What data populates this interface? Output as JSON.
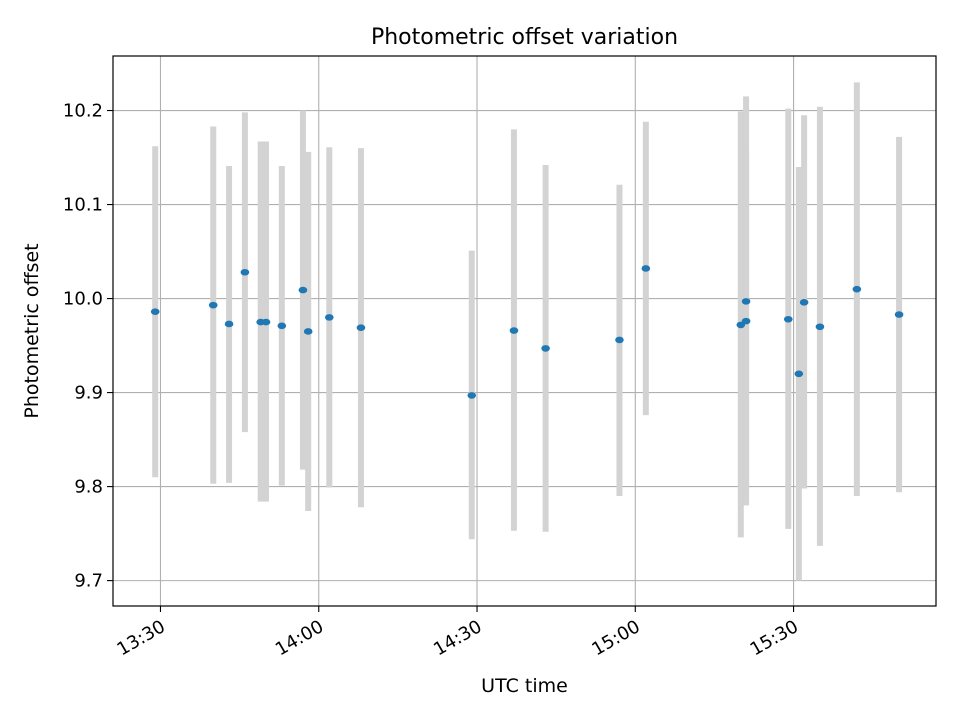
{
  "chart_data": {
    "type": "scatter",
    "title": "Photometric offset variation",
    "xlabel": "UTC time",
    "ylabel": "Photometric offset",
    "x_unit": "UTC time (HH:MM)",
    "xlim": [
      "13:21",
      "15:57"
    ],
    "ylim": [
      9.673,
      10.258
    ],
    "x_ticks": [
      "13:30",
      "14:00",
      "14:30",
      "15:00",
      "15:30"
    ],
    "y_ticks": [
      "9.7",
      "9.8",
      "9.9",
      "10.0",
      "10.1",
      "10.2"
    ],
    "y_tick_values": [
      9.7,
      9.8,
      9.9,
      10.0,
      10.1,
      10.2
    ],
    "grid": true,
    "colors": {
      "point": "#1f77b4",
      "errorbar": "#d3d3d3",
      "grid": "#b0b0b0"
    },
    "series": [
      {
        "points": [
          {
            "x": "13:29",
            "y": 9.986,
            "ylo": 9.81,
            "yhi": 10.162
          },
          {
            "x": "13:40",
            "y": 9.993,
            "ylo": 9.803,
            "yhi": 10.183
          },
          {
            "x": "13:43",
            "y": 9.973,
            "ylo": 9.804,
            "yhi": 10.141
          },
          {
            "x": "13:46",
            "y": 10.028,
            "ylo": 9.858,
            "yhi": 10.198
          },
          {
            "x": "13:49",
            "y": 9.975,
            "ylo": 9.784,
            "yhi": 10.167
          },
          {
            "x": "13:50",
            "y": 9.975,
            "ylo": 9.784,
            "yhi": 10.167
          },
          {
            "x": "13:53",
            "y": 9.971,
            "ylo": 9.801,
            "yhi": 10.141
          },
          {
            "x": "13:57",
            "y": 10.009,
            "ylo": 9.818,
            "yhi": 10.2
          },
          {
            "x": "13:58",
            "y": 9.965,
            "ylo": 9.774,
            "yhi": 10.156
          },
          {
            "x": "14:02",
            "y": 9.98,
            "ylo": 9.799,
            "yhi": 10.161
          },
          {
            "x": "14:08",
            "y": 9.969,
            "ylo": 9.778,
            "yhi": 10.16
          },
          {
            "x": "14:29",
            "y": 9.897,
            "ylo": 9.744,
            "yhi": 10.051
          },
          {
            "x": "14:37",
            "y": 9.966,
            "ylo": 9.753,
            "yhi": 10.18
          },
          {
            "x": "14:43",
            "y": 9.947,
            "ylo": 9.752,
            "yhi": 10.142
          },
          {
            "x": "14:57",
            "y": 9.956,
            "ylo": 9.79,
            "yhi": 10.121
          },
          {
            "x": "15:02",
            "y": 10.032,
            "ylo": 9.876,
            "yhi": 10.188
          },
          {
            "x": "15:20",
            "y": 9.972,
            "ylo": 9.746,
            "yhi": 10.199
          },
          {
            "x": "15:21",
            "y": 9.976,
            "ylo": 9.791,
            "yhi": 10.16
          },
          {
            "x": "15:21",
            "y": 9.997,
            "ylo": 9.78,
            "yhi": 10.215
          },
          {
            "x": "15:29",
            "y": 9.978,
            "ylo": 9.755,
            "yhi": 10.202
          },
          {
            "x": "15:31",
            "y": 9.92,
            "ylo": 9.7,
            "yhi": 10.14
          },
          {
            "x": "15:32",
            "y": 9.996,
            "ylo": 9.798,
            "yhi": 10.195
          },
          {
            "x": "15:35",
            "y": 9.97,
            "ylo": 9.737,
            "yhi": 10.204
          },
          {
            "x": "15:42",
            "y": 10.01,
            "ylo": 9.79,
            "yhi": 10.23
          },
          {
            "x": "15:50",
            "y": 9.983,
            "ylo": 9.794,
            "yhi": 10.172
          }
        ]
      }
    ]
  }
}
